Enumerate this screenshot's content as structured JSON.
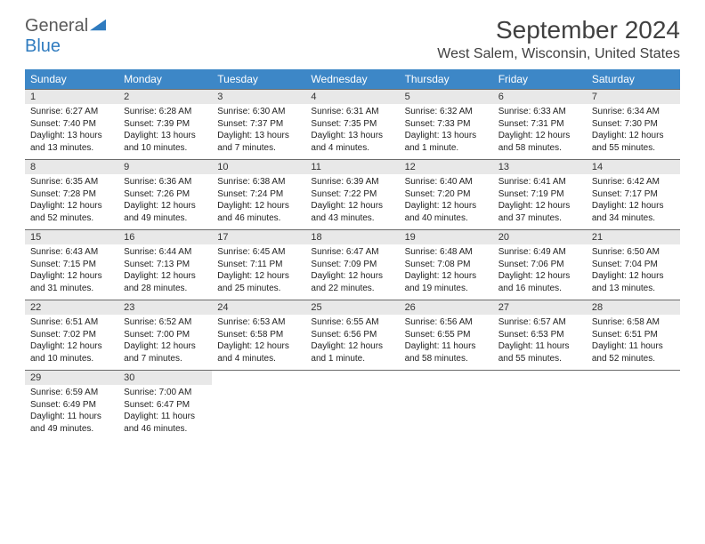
{
  "logo": {
    "word1": "General",
    "word2": "Blue"
  },
  "title": "September 2024",
  "location": "West Salem, Wisconsin, United States",
  "colors": {
    "header_bg": "#3d87c7",
    "header_text": "#ffffff",
    "daynum_bg": "#e8e8e8",
    "border": "#6a6a6a",
    "logo_gray": "#5a5a5a",
    "logo_blue": "#2f7bbf"
  },
  "weekdays": [
    "Sunday",
    "Monday",
    "Tuesday",
    "Wednesday",
    "Thursday",
    "Friday",
    "Saturday"
  ],
  "first_weekday_index": 0,
  "days": [
    {
      "n": 1,
      "sunrise": "6:27 AM",
      "sunset": "7:40 PM",
      "daylight": "13 hours and 13 minutes."
    },
    {
      "n": 2,
      "sunrise": "6:28 AM",
      "sunset": "7:39 PM",
      "daylight": "13 hours and 10 minutes."
    },
    {
      "n": 3,
      "sunrise": "6:30 AM",
      "sunset": "7:37 PM",
      "daylight": "13 hours and 7 minutes."
    },
    {
      "n": 4,
      "sunrise": "6:31 AM",
      "sunset": "7:35 PM",
      "daylight": "13 hours and 4 minutes."
    },
    {
      "n": 5,
      "sunrise": "6:32 AM",
      "sunset": "7:33 PM",
      "daylight": "13 hours and 1 minute."
    },
    {
      "n": 6,
      "sunrise": "6:33 AM",
      "sunset": "7:31 PM",
      "daylight": "12 hours and 58 minutes."
    },
    {
      "n": 7,
      "sunrise": "6:34 AM",
      "sunset": "7:30 PM",
      "daylight": "12 hours and 55 minutes."
    },
    {
      "n": 8,
      "sunrise": "6:35 AM",
      "sunset": "7:28 PM",
      "daylight": "12 hours and 52 minutes."
    },
    {
      "n": 9,
      "sunrise": "6:36 AM",
      "sunset": "7:26 PM",
      "daylight": "12 hours and 49 minutes."
    },
    {
      "n": 10,
      "sunrise": "6:38 AM",
      "sunset": "7:24 PM",
      "daylight": "12 hours and 46 minutes."
    },
    {
      "n": 11,
      "sunrise": "6:39 AM",
      "sunset": "7:22 PM",
      "daylight": "12 hours and 43 minutes."
    },
    {
      "n": 12,
      "sunrise": "6:40 AM",
      "sunset": "7:20 PM",
      "daylight": "12 hours and 40 minutes."
    },
    {
      "n": 13,
      "sunrise": "6:41 AM",
      "sunset": "7:19 PM",
      "daylight": "12 hours and 37 minutes."
    },
    {
      "n": 14,
      "sunrise": "6:42 AM",
      "sunset": "7:17 PM",
      "daylight": "12 hours and 34 minutes."
    },
    {
      "n": 15,
      "sunrise": "6:43 AM",
      "sunset": "7:15 PM",
      "daylight": "12 hours and 31 minutes."
    },
    {
      "n": 16,
      "sunrise": "6:44 AM",
      "sunset": "7:13 PM",
      "daylight": "12 hours and 28 minutes."
    },
    {
      "n": 17,
      "sunrise": "6:45 AM",
      "sunset": "7:11 PM",
      "daylight": "12 hours and 25 minutes."
    },
    {
      "n": 18,
      "sunrise": "6:47 AM",
      "sunset": "7:09 PM",
      "daylight": "12 hours and 22 minutes."
    },
    {
      "n": 19,
      "sunrise": "6:48 AM",
      "sunset": "7:08 PM",
      "daylight": "12 hours and 19 minutes."
    },
    {
      "n": 20,
      "sunrise": "6:49 AM",
      "sunset": "7:06 PM",
      "daylight": "12 hours and 16 minutes."
    },
    {
      "n": 21,
      "sunrise": "6:50 AM",
      "sunset": "7:04 PM",
      "daylight": "12 hours and 13 minutes."
    },
    {
      "n": 22,
      "sunrise": "6:51 AM",
      "sunset": "7:02 PM",
      "daylight": "12 hours and 10 minutes."
    },
    {
      "n": 23,
      "sunrise": "6:52 AM",
      "sunset": "7:00 PM",
      "daylight": "12 hours and 7 minutes."
    },
    {
      "n": 24,
      "sunrise": "6:53 AM",
      "sunset": "6:58 PM",
      "daylight": "12 hours and 4 minutes."
    },
    {
      "n": 25,
      "sunrise": "6:55 AM",
      "sunset": "6:56 PM",
      "daylight": "12 hours and 1 minute."
    },
    {
      "n": 26,
      "sunrise": "6:56 AM",
      "sunset": "6:55 PM",
      "daylight": "11 hours and 58 minutes."
    },
    {
      "n": 27,
      "sunrise": "6:57 AM",
      "sunset": "6:53 PM",
      "daylight": "11 hours and 55 minutes."
    },
    {
      "n": 28,
      "sunrise": "6:58 AM",
      "sunset": "6:51 PM",
      "daylight": "11 hours and 52 minutes."
    },
    {
      "n": 29,
      "sunrise": "6:59 AM",
      "sunset": "6:49 PM",
      "daylight": "11 hours and 49 minutes."
    },
    {
      "n": 30,
      "sunrise": "7:00 AM",
      "sunset": "6:47 PM",
      "daylight": "11 hours and 46 minutes."
    }
  ],
  "labels": {
    "sunrise_prefix": "Sunrise: ",
    "sunset_prefix": "Sunset: ",
    "daylight_prefix": "Daylight: "
  }
}
